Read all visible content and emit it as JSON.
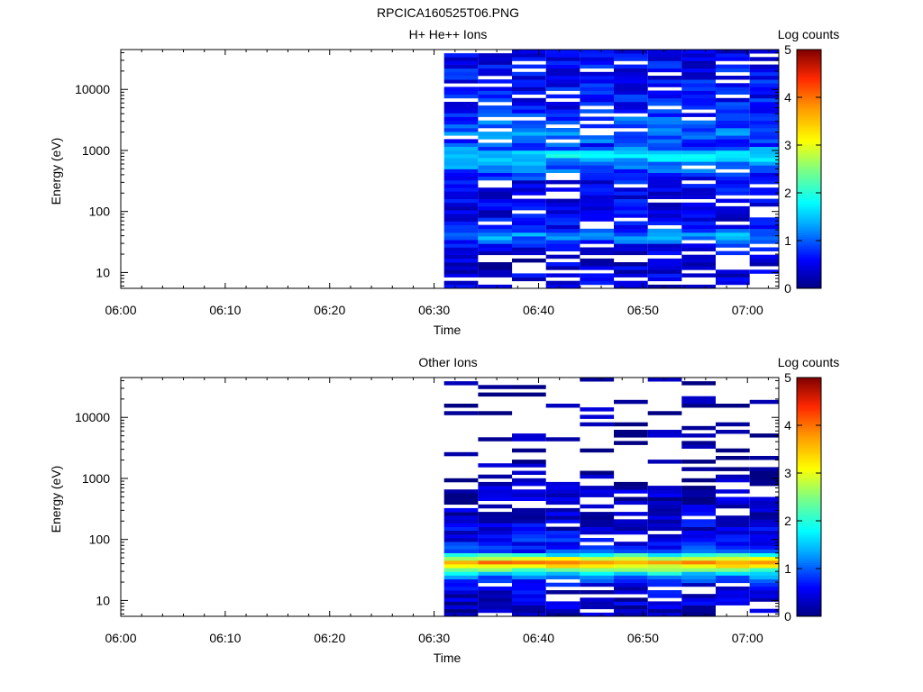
{
  "figure_title": "RPCICA160525T06.PNG",
  "chart_data": [
    {
      "type": "heatmap",
      "title": "H+ He++ Ions",
      "xlabel": "Time",
      "ylabel": "Energy (eV)",
      "x_ticks": [
        "06:00",
        "06:10",
        "06:20",
        "06:30",
        "06:40",
        "06:50",
        "07:00"
      ],
      "x_range": [
        "06:00",
        "07:03"
      ],
      "y_scale": "log",
      "y_ticks": [
        "10",
        "100",
        "1000",
        "10000"
      ],
      "ylim": [
        5.5,
        45000
      ],
      "colorbar": {
        "label": "Log counts",
        "ticks": [
          "0",
          "1",
          "2",
          "3",
          "4",
          "5"
        ],
        "range": [
          0,
          5
        ]
      },
      "time_columns": [
        "06:32:35",
        "06:35:50",
        "06:39:05",
        "06:42:20",
        "06:45:35",
        "06:48:50",
        "06:52:05",
        "06:55:20",
        "06:58:35",
        "07:01:50"
      ],
      "seed": 17,
      "profile": [
        {
          "e": 6,
          "v": 0.45,
          "cov": 0.65
        },
        {
          "e": 15,
          "v": 0.35,
          "cov": 0.7
        },
        {
          "e": 28,
          "v": 0.6,
          "cov": 0.85
        },
        {
          "e": 40,
          "v": 1.35,
          "cov": 1.0
        },
        {
          "e": 60,
          "v": 0.55,
          "cov": 0.75
        },
        {
          "e": 120,
          "v": 0.5,
          "cov": 0.8
        },
        {
          "e": 300,
          "v": 0.55,
          "cov": 0.85
        },
        {
          "e": 600,
          "v": 1.2,
          "cov": 1.0
        },
        {
          "e": 850,
          "v": 1.75,
          "cov": 1.0
        },
        {
          "e": 1200,
          "v": 0.8,
          "cov": 0.95
        },
        {
          "e": 2000,
          "v": 1.15,
          "cov": 0.9
        },
        {
          "e": 5000,
          "v": 0.65,
          "cov": 0.85
        },
        {
          "e": 45000,
          "v": 0.55,
          "cov": 0.85
        }
      ]
    },
    {
      "type": "heatmap",
      "title": "Other Ions",
      "xlabel": "Time",
      "ylabel": "Energy (eV)",
      "x_ticks": [
        "06:00",
        "06:10",
        "06:20",
        "06:30",
        "06:40",
        "06:50",
        "07:00"
      ],
      "x_range": [
        "06:00",
        "07:03"
      ],
      "y_scale": "log",
      "y_ticks": [
        "10",
        "100",
        "1000",
        "10000"
      ],
      "ylim": [
        5.5,
        45000
      ],
      "colorbar": {
        "label": "Log counts",
        "ticks": [
          "0",
          "1",
          "2",
          "3",
          "4",
          "5"
        ],
        "range": [
          0,
          5
        ]
      },
      "time_columns": [
        "06:32:35",
        "06:35:50",
        "06:39:05",
        "06:42:20",
        "06:45:35",
        "06:48:50",
        "06:52:05",
        "06:55:20",
        "06:58:35",
        "07:01:50"
      ],
      "seed": 91,
      "profile": [
        {
          "e": 6,
          "v": 0.3,
          "cov": 0.8
        },
        {
          "e": 18,
          "v": 0.45,
          "cov": 0.85
        },
        {
          "e": 26,
          "v": 1.3,
          "cov": 1.0
        },
        {
          "e": 33,
          "v": 2.6,
          "cov": 1.0
        },
        {
          "e": 42,
          "v": 3.8,
          "cov": 1.0
        },
        {
          "e": 52,
          "v": 2.5,
          "cov": 1.0
        },
        {
          "e": 65,
          "v": 0.75,
          "cov": 0.95
        },
        {
          "e": 150,
          "v": 0.45,
          "cov": 0.85
        },
        {
          "e": 500,
          "v": 0.3,
          "cov": 0.7
        },
        {
          "e": 1100,
          "v": 0.1,
          "cov": 0.3
        },
        {
          "e": 3000,
          "v": 0.1,
          "cov": 0.22
        },
        {
          "e": 45000,
          "v": 0.1,
          "cov": 0.12
        }
      ]
    }
  ]
}
